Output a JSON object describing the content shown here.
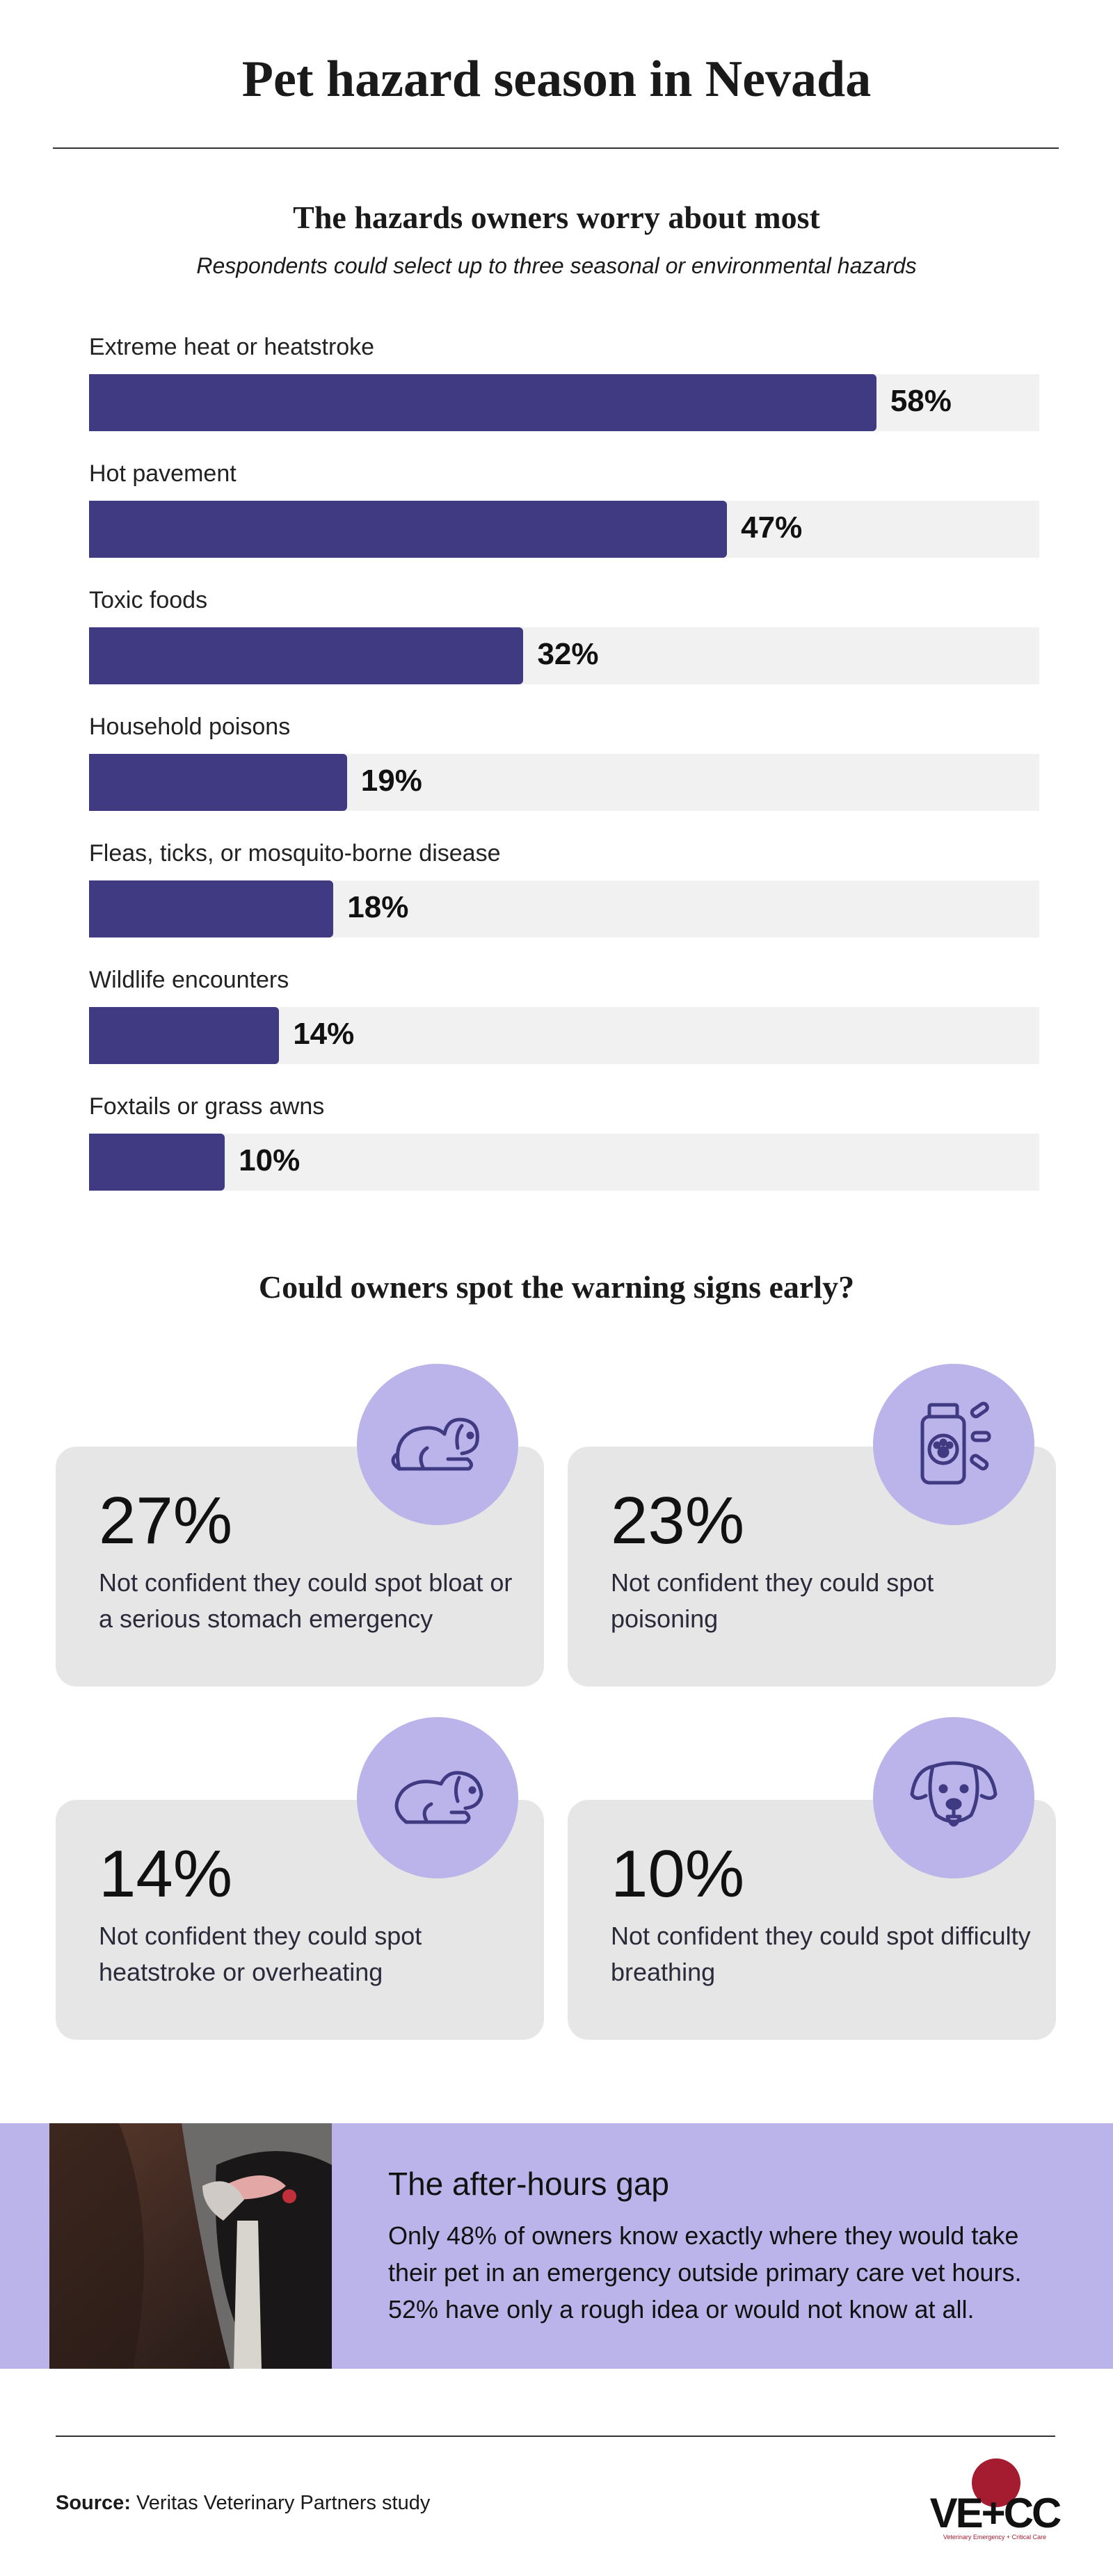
{
  "header": {
    "title": "Pet hazard season in Nevada"
  },
  "chart_data": {
    "type": "bar",
    "orientation": "horizontal",
    "title": "The hazards owners worry about most",
    "subtitle": "Respondents could select up to three seasonal or environmental hazards",
    "categories": [
      "Extreme heat or heatstroke",
      "Hot pavement",
      "Toxic foods",
      "Household poisons",
      "Fleas, ticks, or mosquito-borne disease",
      "Wildlife encounters",
      "Foxtails or grass awns"
    ],
    "values": [
      58,
      47,
      32,
      19,
      18,
      14,
      10
    ],
    "value_labels": [
      "58%",
      "47%",
      "32%",
      "19%",
      "18%",
      "14%",
      "10%"
    ],
    "color": "#3f3a82",
    "track_color": "#f1f1f1",
    "xlim": [
      0,
      70
    ]
  },
  "warning_signs": {
    "heading": "Could owners spot the warning signs early?",
    "cards": [
      {
        "stat": "27%",
        "text": "Not confident they could spot bloat or a serious stomach emergency"
      },
      {
        "stat": "23%",
        "text": "Not confident they could spot poisoning"
      },
      {
        "stat": "14%",
        "text": "Not confident they could spot heatstroke or overheating"
      },
      {
        "stat": "10%",
        "text": "Not confident they could spot difficulty breathing"
      }
    ]
  },
  "after_hours": {
    "heading": "The after-hours gap",
    "body": "Only 48% of owners know exactly where they would take their pet in an emergency outside primary care vet hours. 52% have only a rough idea or would not know at all."
  },
  "footer": {
    "source_label": "Source:",
    "source": "Veritas Veterinary Partners study",
    "logo": "VE+CC",
    "logo_tagline": "Veterinary Emergency + Critical Care"
  }
}
